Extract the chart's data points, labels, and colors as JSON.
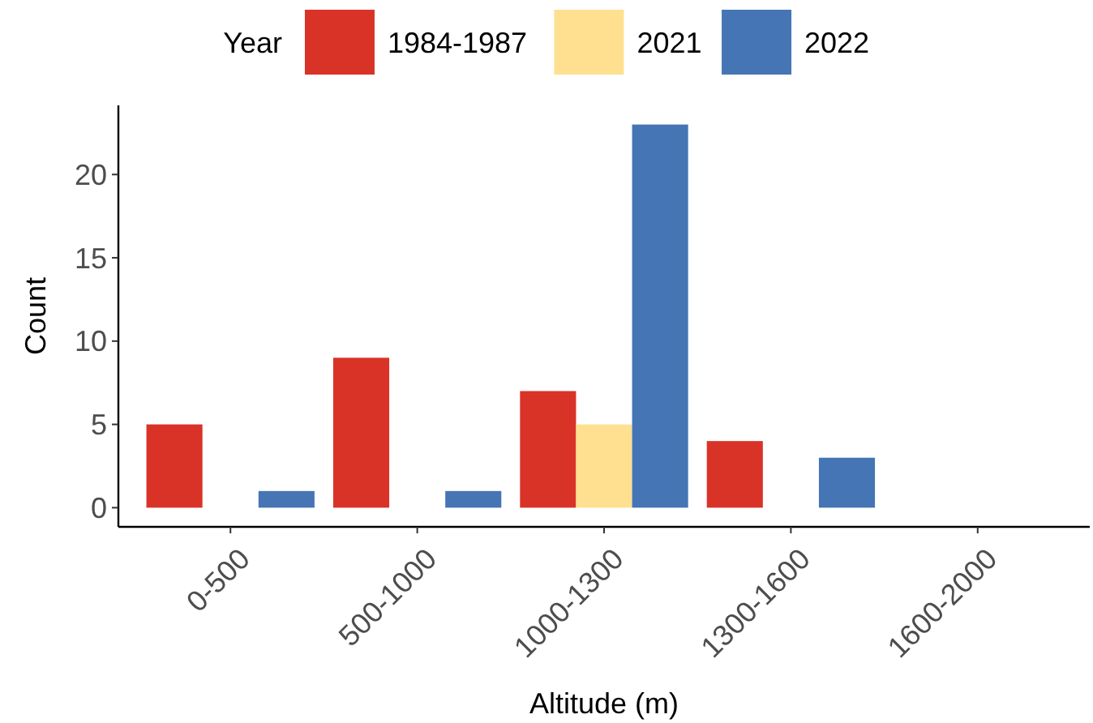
{
  "chart_data": {
    "type": "bar",
    "xlabel": "Altitude (m)",
    "ylabel": "Count",
    "legend_title": "Year",
    "legend": "top",
    "categories": [
      "0-500",
      "500-1000",
      "1000-1300",
      "1300-1600",
      "1600-2000"
    ],
    "series": [
      {
        "name": "1984-1987",
        "color": "#d93328",
        "values": [
          5,
          9,
          7,
          4,
          null
        ]
      },
      {
        "name": "2021",
        "color": "#fee090",
        "values": [
          null,
          null,
          5,
          null,
          null
        ]
      },
      {
        "name": "2022",
        "color": "#4575b4",
        "values": [
          1,
          1,
          23,
          3,
          null
        ]
      }
    ],
    "ylim": [
      -1.15,
      24.15
    ],
    "yticks": [
      0,
      5,
      10,
      15,
      20
    ],
    "grid": false
  }
}
